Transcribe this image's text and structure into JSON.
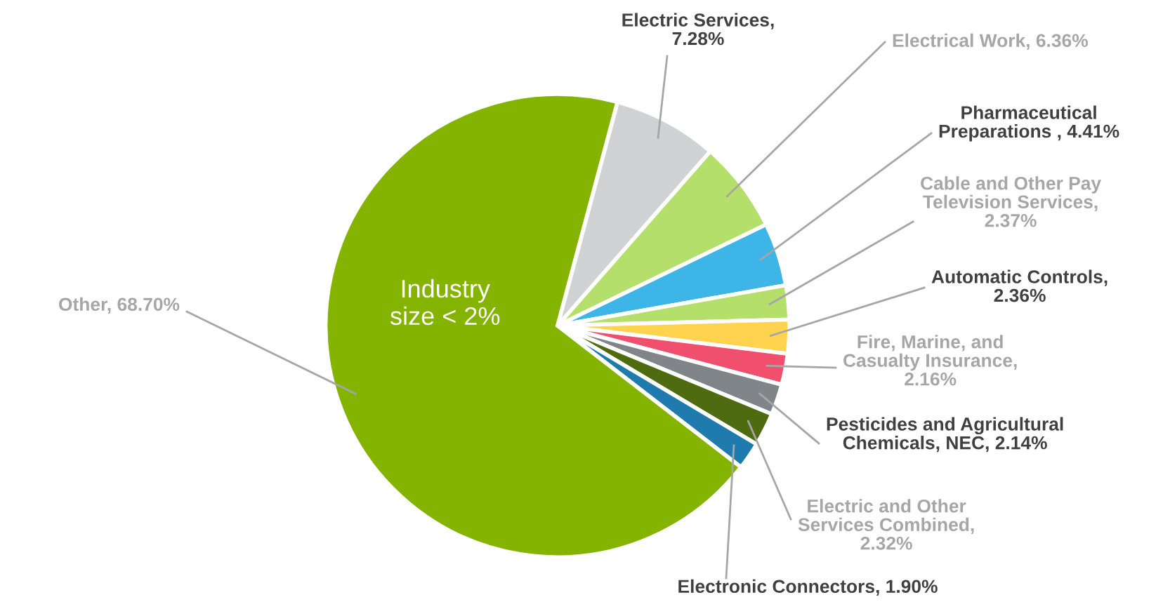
{
  "chart_data": {
    "type": "pie",
    "categories": [
      "Electric Services, 7.28%",
      "Electrical Work, 6.36%",
      "Pharmaceutical Preparations , 4.41%",
      "Cable and Other Pay Television Services, 2.37%",
      "Automatic Controls, 2.36%",
      "Fire, Marine, and Casualty Insurance, 2.16%",
      "Pesticides and Agricultural Chemicals, NEC, 2.14%",
      "Electric and Other Services Combined, 2.32%",
      "Electronic Connectors, 1.90%",
      "Other, 68.70%"
    ],
    "values": [
      7.28,
      6.36,
      4.41,
      2.37,
      2.36,
      2.16,
      2.14,
      2.32,
      1.9,
      68.7
    ],
    "colors": [
      "#d0d2d3",
      "#b4df6a",
      "#3db5e6",
      "#b4df6a",
      "#ffd34e",
      "#f0506e",
      "#7f8589",
      "#4f6b10",
      "#1f7bad",
      "#84b400"
    ],
    "annotations": [
      "Industry size < 2%"
    ]
  }
}
